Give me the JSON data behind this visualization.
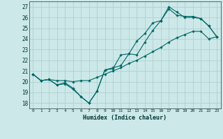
{
  "xlabel": "Humidex (Indice chaleur)",
  "bg_color": "#cce8e8",
  "grid_color": "#aacccc",
  "line_color": "#006666",
  "xlim": [
    -0.5,
    23.5
  ],
  "ylim": [
    17.5,
    27.5
  ],
  "xticks": [
    0,
    1,
    2,
    3,
    4,
    5,
    6,
    7,
    8,
    9,
    10,
    11,
    12,
    13,
    14,
    15,
    16,
    17,
    18,
    19,
    20,
    21,
    22,
    23
  ],
  "yticks": [
    18,
    19,
    20,
    21,
    22,
    23,
    24,
    25,
    26,
    27
  ],
  "series1_x": [
    0,
    1,
    2,
    3,
    4,
    5,
    6,
    7,
    8,
    9,
    10,
    11,
    12,
    13,
    14,
    15,
    16,
    17,
    18,
    19,
    20,
    21,
    22,
    23
  ],
  "series1_y": [
    20.7,
    20.1,
    20.2,
    19.7,
    19.8,
    19.3,
    18.6,
    18.0,
    19.1,
    21.1,
    21.2,
    22.5,
    22.6,
    23.8,
    24.5,
    25.5,
    25.7,
    27.0,
    26.5,
    26.0,
    26.0,
    25.9,
    25.2,
    24.2
  ],
  "series2_x": [
    0,
    1,
    2,
    3,
    4,
    5,
    6,
    7,
    8,
    9,
    10,
    11,
    12,
    13,
    14,
    15,
    16,
    17,
    18,
    19,
    20,
    21,
    22,
    23
  ],
  "series2_y": [
    20.7,
    20.1,
    20.2,
    19.7,
    19.9,
    19.4,
    18.6,
    18.0,
    19.1,
    21.1,
    21.3,
    21.5,
    22.6,
    22.5,
    23.7,
    24.8,
    25.7,
    26.8,
    26.2,
    26.1,
    26.1,
    25.9,
    25.2,
    24.2
  ],
  "series3_x": [
    0,
    1,
    2,
    3,
    4,
    5,
    6,
    7,
    8,
    9,
    10,
    11,
    12,
    13,
    14,
    15,
    16,
    17,
    18,
    19,
    20,
    21,
    22,
    23
  ],
  "series3_y": [
    20.7,
    20.1,
    20.2,
    20.1,
    20.1,
    20.0,
    20.1,
    20.1,
    20.4,
    20.7,
    21.0,
    21.3,
    21.7,
    22.0,
    22.4,
    22.8,
    23.2,
    23.7,
    24.1,
    24.4,
    24.7,
    24.7,
    24.0,
    24.2
  ]
}
